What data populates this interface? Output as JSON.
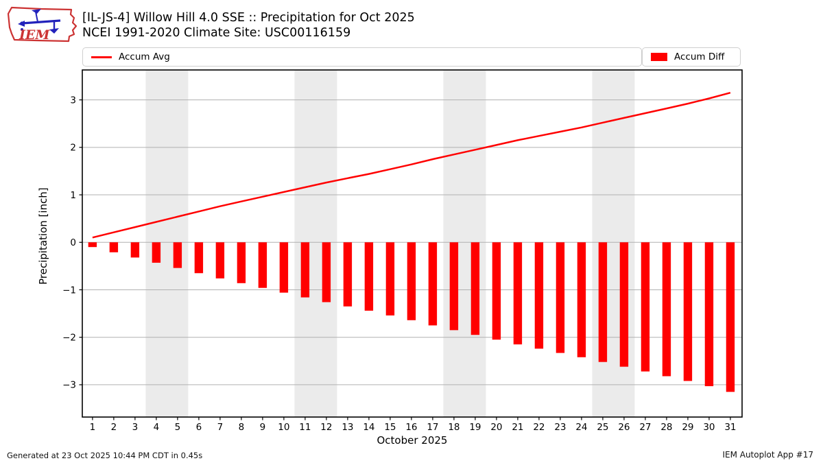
{
  "header": {
    "logo_text": "IEM",
    "title_line1": "[IL-JS-4] Willow Hill 4.0 SSE :: Precipitation for Oct 2025",
    "title_line2": "NCEI 1991-2020 Climate Site: USC00116159"
  },
  "legend": {
    "items": [
      {
        "label": "Accum Avg",
        "swatch": "line",
        "color": "#ff0000"
      },
      {
        "label": "Accum Diff",
        "swatch": "rect",
        "color": "#ff0000"
      }
    ]
  },
  "chart_data": {
    "type": "bar",
    "title": "[IL-JS-4] Willow Hill 4.0 SSE :: Precipitation for Oct 2025",
    "subtitle": "NCEI 1991-2020 Climate Site: USC00116159",
    "xlabel": "October 2025",
    "ylabel": "Precipitation [inch]",
    "x": [
      1,
      2,
      3,
      4,
      5,
      6,
      7,
      8,
      9,
      10,
      11,
      12,
      13,
      14,
      15,
      16,
      17,
      18,
      19,
      20,
      21,
      22,
      23,
      24,
      25,
      26,
      27,
      28,
      29,
      30,
      31
    ],
    "series": [
      {
        "name": "Accum Avg",
        "type": "line",
        "color": "#ff0000",
        "values": [
          0.1,
          0.21,
          0.32,
          0.43,
          0.54,
          0.65,
          0.76,
          0.86,
          0.96,
          1.06,
          1.16,
          1.26,
          1.35,
          1.44,
          1.54,
          1.64,
          1.75,
          1.85,
          1.95,
          2.05,
          2.15,
          2.24,
          2.33,
          2.42,
          2.52,
          2.62,
          2.72,
          2.82,
          2.92,
          3.03,
          3.15
        ]
      },
      {
        "name": "Accum Diff",
        "type": "bar",
        "color": "#ff0000",
        "values": [
          -0.1,
          -0.21,
          -0.32,
          -0.43,
          -0.54,
          -0.65,
          -0.76,
          -0.86,
          -0.96,
          -1.06,
          -1.16,
          -1.26,
          -1.35,
          -1.44,
          -1.54,
          -1.64,
          -1.75,
          -1.85,
          -1.95,
          -2.05,
          -2.15,
          -2.24,
          -2.33,
          -2.42,
          -2.52,
          -2.62,
          -2.72,
          -2.82,
          -2.92,
          -3.03,
          -3.15
        ]
      }
    ],
    "xlim": [
      0.52,
      31.55
    ],
    "ylim": [
      -3.68,
      3.63
    ],
    "xticks": [
      1,
      2,
      3,
      4,
      5,
      6,
      7,
      8,
      9,
      10,
      11,
      12,
      13,
      14,
      15,
      16,
      17,
      18,
      19,
      20,
      21,
      22,
      23,
      24,
      25,
      26,
      27,
      28,
      29,
      30,
      31
    ],
    "yticks": [
      -3,
      -2,
      -1,
      0,
      1,
      2,
      3
    ],
    "grid": "horizontal",
    "gridline_color": "#b0b0b0",
    "weekend_bands": [
      [
        3.5,
        5.5
      ],
      [
        10.5,
        12.5
      ],
      [
        17.5,
        19.5
      ],
      [
        24.5,
        26.5
      ]
    ],
    "band_color": "#ebebeb",
    "legend_position": "top"
  },
  "footer": {
    "left": "Generated at 23 Oct 2025 10:44 PM CDT in 0.45s",
    "right": "IEM Autoplot App #17"
  }
}
